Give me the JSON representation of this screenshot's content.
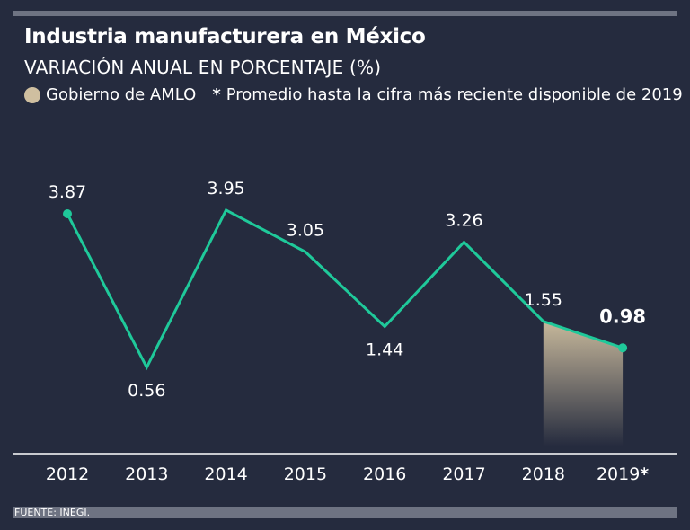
{
  "title": "Industria manufacturera en México",
  "subtitle": "VARIACIÓN ANUAL EN PORCENTAJE (%)",
  "legend": {
    "amlo_label": "Gobierno de AMLO",
    "star": "*",
    "note": "Promedio hasta la cifra más reciente disponible de 2019"
  },
  "source": "FUENTE: INEGI.",
  "colors": {
    "background": "#252b3e",
    "line": "#1fc99a",
    "amlo_shade": "#cfbfa0",
    "rule": "#6e7382"
  },
  "chart_data": {
    "type": "line",
    "title": "Industria manufacturera en México",
    "subtitle": "VARIACIÓN ANUAL EN PORCENTAJE (%)",
    "categories": [
      "2012",
      "2013",
      "2014",
      "2015",
      "2016",
      "2017",
      "2018",
      "2019*"
    ],
    "series": [
      {
        "name": "Variación anual (%)",
        "values": [
          3.87,
          0.56,
          3.95,
          3.05,
          1.44,
          3.26,
          1.55,
          0.98
        ],
        "labels": [
          "3.87",
          "0.56",
          "3.95",
          "3.05",
          "1.44",
          "3.26",
          "1.55",
          "0.98"
        ]
      }
    ],
    "highlight": {
      "label": "Gobierno de AMLO",
      "from": "2018",
      "to": "2019*"
    },
    "xlabel": "",
    "ylabel": "",
    "ylim": [
      -1.3,
      4.8
    ],
    "grid": false,
    "legend_position": "top-left"
  }
}
